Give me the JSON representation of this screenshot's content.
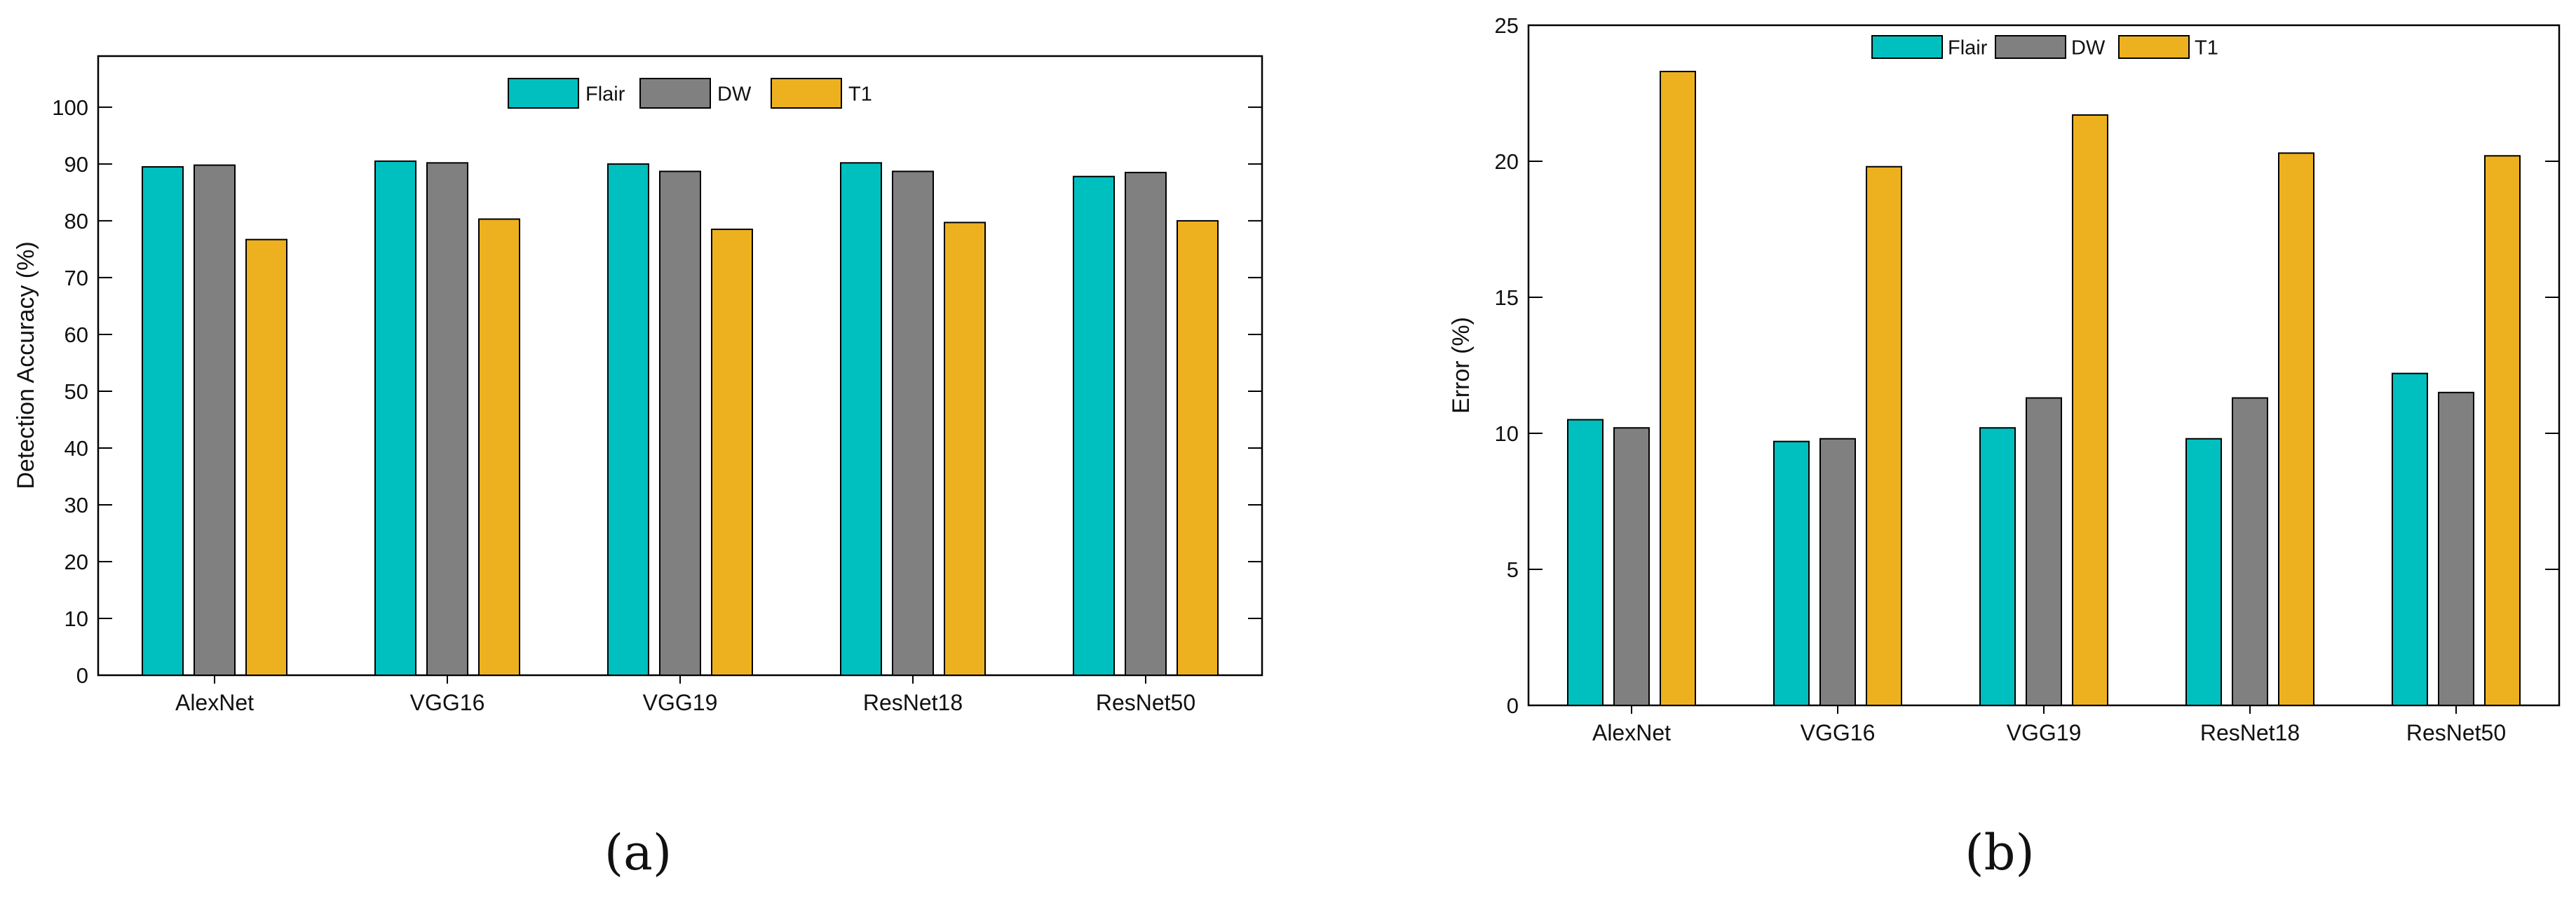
{
  "chart_data": [
    {
      "type": "bar",
      "panel_label": "(a)",
      "title": "",
      "xlabel": "",
      "ylabel": "Detection Accuracy (%)",
      "categories": [
        "AlexNet",
        "VGG16",
        "VGG19",
        "ResNet18",
        "ResNet50"
      ],
      "series": [
        {
          "name": "Flair",
          "values": [
            89.5,
            90.5,
            90.0,
            90.2,
            87.8
          ],
          "color": "#00BFBF"
        },
        {
          "name": "DW",
          "values": [
            89.8,
            90.2,
            88.7,
            88.7,
            88.5
          ],
          "color": "#808080"
        },
        {
          "name": "T1",
          "values": [
            76.7,
            80.3,
            78.5,
            79.7,
            80.0
          ],
          "color": "#EDB120"
        }
      ],
      "ylim": [
        0,
        109
      ],
      "yticks": [
        0,
        10,
        20,
        30,
        40,
        50,
        60,
        70,
        80,
        90,
        100
      ],
      "ytick_labels": [
        "0",
        "10",
        "20",
        "30",
        "40",
        "50",
        "60",
        "70",
        "80",
        "90",
        "100"
      ],
      "legend_position": "top-center",
      "grid": false
    },
    {
      "type": "bar",
      "panel_label": "(b)",
      "title": "",
      "xlabel": "",
      "ylabel": "Error (%)",
      "categories": [
        "AlexNet",
        "VGG16",
        "VGG19",
        "ResNet18",
        "ResNet50"
      ],
      "series": [
        {
          "name": "Flair",
          "values": [
            10.5,
            9.7,
            10.2,
            9.8,
            12.2
          ],
          "color": "#00BFBF"
        },
        {
          "name": "DW",
          "values": [
            10.2,
            9.8,
            11.3,
            11.3,
            11.5
          ],
          "color": "#808080"
        },
        {
          "name": "T1",
          "values": [
            23.3,
            19.8,
            21.7,
            20.3,
            20.2
          ],
          "color": "#EDB120"
        }
      ],
      "ylim": [
        0,
        25
      ],
      "yticks": [
        0,
        5,
        10,
        15,
        20,
        25
      ],
      "ytick_labels": [
        "0",
        "5",
        "10",
        "15",
        "20",
        "25"
      ],
      "legend_position": "top-center",
      "grid": false
    }
  ]
}
